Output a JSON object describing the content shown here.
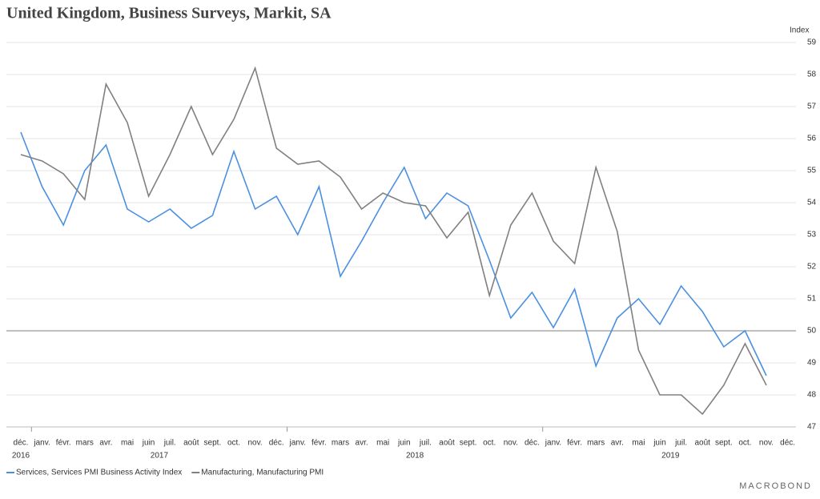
{
  "chart_data": {
    "type": "line",
    "title": "United Kingdom, Business Surveys, Markit, SA",
    "y_unit": "Index",
    "categories": [
      "déc.",
      "janv.",
      "févr.",
      "mars",
      "avr.",
      "mai",
      "juin",
      "juil.",
      "août",
      "sept.",
      "oct.",
      "nov.",
      "déc.",
      "janv.",
      "févr.",
      "mars",
      "avr.",
      "mai",
      "juin",
      "juil.",
      "août",
      "sept.",
      "oct.",
      "nov.",
      "déc.",
      "janv.",
      "févr.",
      "mars",
      "avr.",
      "mai",
      "juin",
      "juil.",
      "août",
      "sept.",
      "oct.",
      "nov.",
      "déc."
    ],
    "year_labels": [
      {
        "label": "2016",
        "span": [
          0,
          0
        ]
      },
      {
        "label": "2017",
        "span": [
          1,
          12
        ]
      },
      {
        "label": "2018",
        "span": [
          13,
          24
        ]
      },
      {
        "label": "2019",
        "span": [
          25,
          36
        ]
      }
    ],
    "series": [
      {
        "name": "Services, Services PMI Business Activity Index",
        "color": "#4a90e2",
        "values": [
          56.2,
          54.5,
          53.3,
          55.0,
          55.8,
          53.8,
          53.4,
          53.8,
          53.2,
          53.6,
          55.6,
          53.8,
          54.2,
          53.0,
          54.5,
          51.7,
          52.8,
          54.0,
          55.1,
          53.5,
          54.3,
          53.9,
          52.2,
          50.4,
          51.2,
          50.1,
          51.3,
          48.9,
          50.4,
          51.0,
          50.2,
          51.4,
          50.6,
          49.5,
          50.0,
          48.6,
          null
        ]
      },
      {
        "name": "Manufacturing, Manufacturing PMI",
        "color": "#808080",
        "values": [
          55.5,
          55.3,
          54.9,
          54.1,
          57.7,
          56.5,
          54.2,
          55.5,
          57.0,
          55.5,
          56.6,
          58.2,
          55.7,
          55.2,
          55.3,
          54.8,
          53.8,
          54.3,
          54.0,
          53.9,
          52.9,
          53.7,
          51.1,
          53.3,
          54.3,
          52.8,
          52.1,
          55.1,
          53.1,
          49.4,
          48.0,
          48.0,
          47.4,
          48.3,
          49.6,
          48.3,
          null
        ]
      }
    ],
    "ylim": [
      47,
      59
    ],
    "yticks": [
      47,
      48,
      49,
      50,
      51,
      52,
      53,
      54,
      55,
      56,
      57,
      58,
      59
    ],
    "reference_line": 50,
    "grid": true,
    "legend": "bottom",
    "source": "MACROBOND"
  }
}
